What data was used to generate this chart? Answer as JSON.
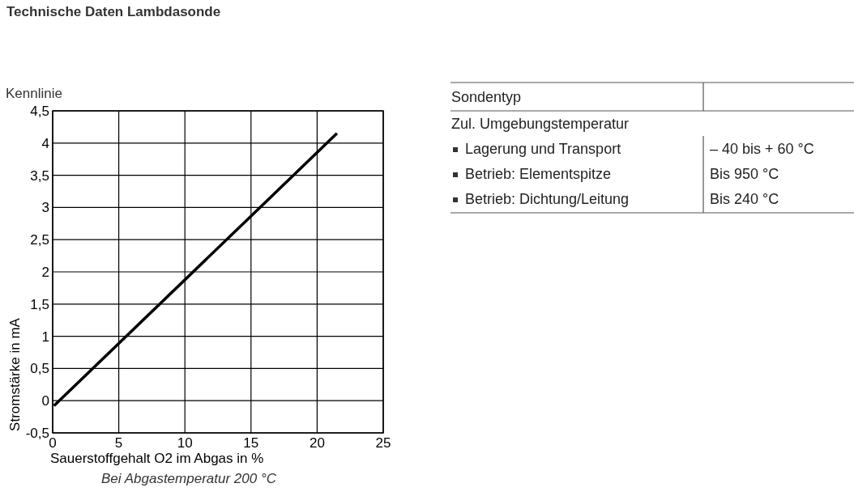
{
  "chart_data": [
    {
      "type": "line",
      "title": "Technische Daten Lambdasonde",
      "subtitle": "Kennlinie",
      "xlabel": "Sauerstoffgehalt O2 im Abgas in %",
      "ylabel": "Stromstärke in mA",
      "annotations": [
        "Bei Abgastemperatur 200 °C"
      ],
      "series": [
        {
          "color": "#000000",
          "x": [
            0.1,
            21.5
          ],
          "values": [
            -0.08,
            4.15
          ]
        }
      ],
      "xlim": [
        0,
        25
      ],
      "xticks": [
        0,
        5,
        10,
        15,
        20,
        25
      ],
      "ylim": [
        -0.5,
        4.5
      ],
      "yticks": [
        {
          "value": -0.5,
          "label": "-0,5"
        },
        0,
        {
          "value": 0.5,
          "label": "0,5"
        },
        1,
        {
          "value": 1.5,
          "label": "1,5"
        },
        2,
        {
          "value": 2.5,
          "label": "2,5"
        },
        3,
        {
          "value": 3.5,
          "label": "3,5"
        },
        4,
        {
          "value": 4.5,
          "label": "4,5"
        }
      ],
      "grid": true,
      "marker": "none",
      "line_style": "solid"
    },
    {
      "type": "other",
      "categories": [
        "Sondentyp",
        "Zul. Umgebungstemperatur",
        "Lagerung und Transport",
        "Betrieb: Elementspitze",
        "Betrieb: Dichtung/Leitung"
      ],
      "value_labels": [
        null,
        null,
        "– 40 bis + 60 °C",
        "Bis 950 °C",
        "Bis 240 °C"
      ]
    }
  ]
}
